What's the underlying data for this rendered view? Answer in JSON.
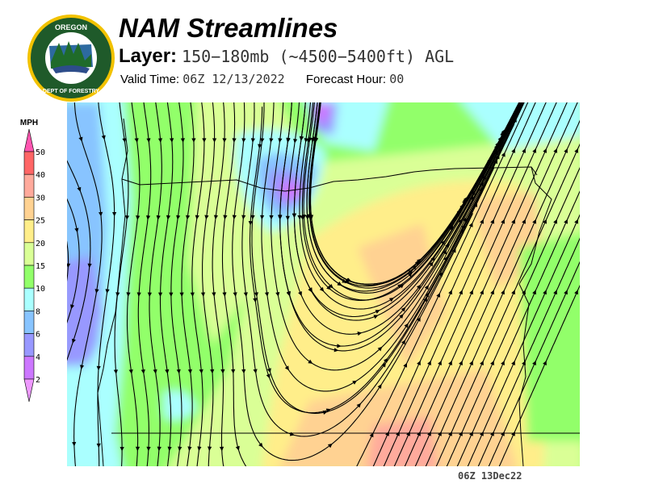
{
  "logo": {
    "text_top": "OREGON",
    "text_bottom": "DEPARTMENT OF FORESTRY"
  },
  "header": {
    "title": "NAM Streamlines",
    "layer_label": "Layer:",
    "layer_value": "150−180mb (~4500−5400ft) AGL",
    "valid_label": "Valid Time:",
    "valid_value": "06Z 12/13/2022",
    "forecast_label": "Forecast Hour:",
    "forecast_value": "00"
  },
  "colorbar": {
    "unit": "MPH",
    "labels": [
      "50",
      "40",
      "30",
      "25",
      "20",
      "15",
      "10",
      "8",
      "6",
      "4",
      "2"
    ],
    "colors": {
      "over": "#ff55b0",
      "40-50": "#ff6666",
      "30-40": "#ffaa9c",
      "25-30": "#ffd292",
      "20-25": "#ffee8a",
      "15-20": "#daff96",
      "10-15": "#92ff6a",
      "8-10": "#aaffff",
      "6-8": "#88c4ff",
      "4-6": "#9898ff",
      "2-4": "#cc77ff",
      "under": "#ee99ff"
    }
  },
  "footer": {
    "timestamp": "06Z 13Dec22"
  }
}
